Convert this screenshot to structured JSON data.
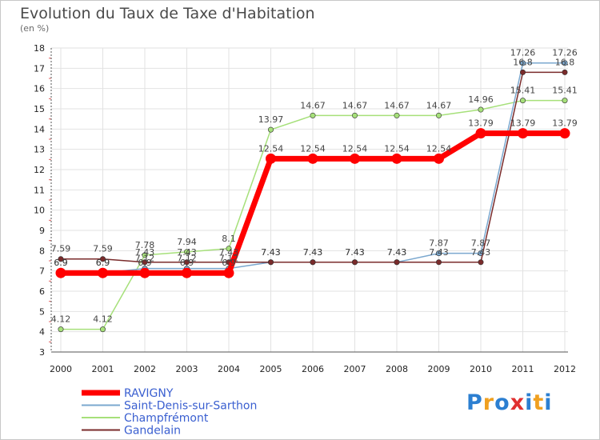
{
  "chart_data": {
    "type": "line",
    "title": "Evolution du Taux de Taxe d'Habitation",
    "subtitle": "(en %)",
    "ylim": [
      3,
      18
    ],
    "yticks": [
      "3",
      "4",
      "5",
      "6",
      "7",
      "8",
      "9",
      "10",
      "11",
      "12",
      "13",
      "14",
      "15",
      "16",
      "17",
      "18"
    ],
    "categories": [
      "2000",
      "2001",
      "2002",
      "2003",
      "2004",
      "2005",
      "2006",
      "2007",
      "2008",
      "2009",
      "2010",
      "2011",
      "2012"
    ],
    "series": [
      {
        "name": "RAVIGNY",
        "color": "#ff0000",
        "values": [
          6.9,
          6.9,
          6.9,
          6.9,
          6.9,
          12.54,
          12.54,
          12.54,
          12.54,
          12.54,
          13.79,
          13.79,
          13.79
        ],
        "labels": [
          "6.9",
          "6.9",
          "6.9",
          "6.9",
          "6.9",
          "12.54",
          "12.54",
          "12.54",
          "12.54",
          "12.54",
          "13.79",
          "13.79",
          "13.79"
        ]
      },
      {
        "name": "Saint-Denis-sur-Sarthon",
        "color": "#7ba8cf",
        "values": [
          6.9,
          6.9,
          7.12,
          7.12,
          7.12,
          7.43,
          7.43,
          7.43,
          7.43,
          7.87,
          7.87,
          17.26,
          17.26
        ],
        "labels": [
          "6.9",
          "6.9",
          "7.12",
          "7.12",
          "7.12",
          "7.43",
          "7.43",
          "7.43",
          "7.43",
          "7.87",
          "7.87",
          "17.26",
          "17.26"
        ]
      },
      {
        "name": "Champfrémont",
        "color": "#a6e07a",
        "values": [
          4.12,
          4.12,
          7.78,
          7.94,
          8.1,
          13.97,
          14.67,
          14.67,
          14.67,
          14.67,
          14.96,
          15.41,
          15.41
        ],
        "labels": [
          "4.12",
          "4.12",
          "7.78",
          "7.94",
          "8.1",
          "13.97",
          "14.67",
          "14.67",
          "14.67",
          "14.67",
          "14.96",
          "15.41",
          "15.41"
        ]
      },
      {
        "name": "Gandelain",
        "color": "#7a2b2b",
        "values": [
          7.59,
          7.59,
          7.43,
          7.43,
          7.43,
          7.43,
          7.43,
          7.43,
          7.43,
          7.43,
          7.43,
          16.8,
          16.8
        ],
        "labels": [
          "7.59",
          "7.59",
          "7.43",
          "7.43",
          "7.43",
          "7.43",
          "7.43",
          "7.43",
          "7.43",
          "7.43",
          "7.43",
          "16.8",
          "16.8"
        ]
      }
    ]
  },
  "branding": {
    "logo_letters": [
      "P",
      "r",
      "o",
      "x",
      "i",
      "t",
      "i"
    ],
    "logo_colors": [
      "#2c7fd1",
      "#f0a020",
      "#2c7fd1",
      "#e03030",
      "#2c7fd1",
      "#f0a020",
      "#2c7fd1"
    ]
  }
}
